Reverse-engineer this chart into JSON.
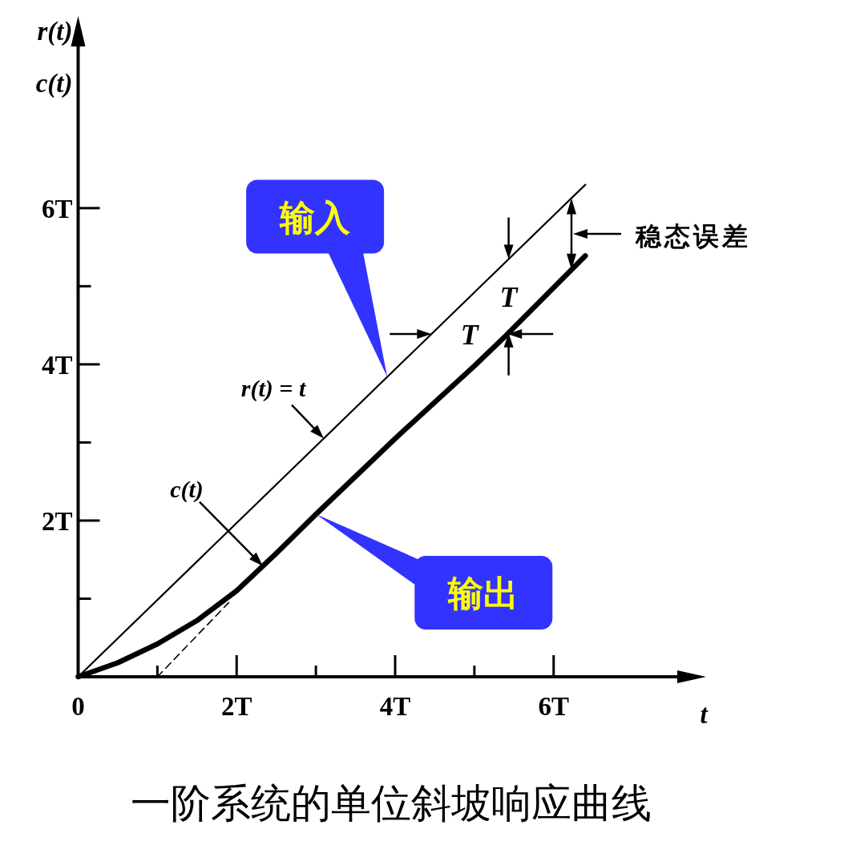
{
  "chart_data": {
    "type": "line",
    "title": "一阶系统的单位斜坡响应曲线",
    "xlabel": "t",
    "ylabel": "r(t)\nc(t)",
    "series": [
      {
        "color": "#000000",
        "x": [
          0,
          6.4
        ],
        "values": [
          0,
          6.3
        ]
      },
      {
        "color": "#000000",
        "x": [
          0,
          0.5,
          1,
          1.5,
          2,
          2.5,
          3,
          4,
          5,
          5.4,
          6.4
        ],
        "values": [
          0,
          0.18,
          0.42,
          0.72,
          1.1,
          1.58,
          2.08,
          3.05,
          3.98,
          4.37,
          5.39
        ]
      },
      {
        "color": "#000000",
        "line_style": "dashed",
        "x": [
          1,
          1.9
        ],
        "values": [
          0,
          0.95
        ]
      }
    ],
    "xlim": [
      0,
      7.57
    ],
    "ylim": [
      0,
      8.08
    ],
    "xticks": [
      0,
      {
        "value": 1,
        "label": null
      },
      {
        "value": 2,
        "label": "2T"
      },
      {
        "value": 3,
        "label": null
      },
      {
        "value": 4,
        "label": "4T"
      },
      {
        "value": 5,
        "label": null
      },
      {
        "value": 6,
        "label": "6T"
      }
    ],
    "yticks": [
      {
        "value": 1,
        "label": null
      },
      {
        "value": 2,
        "label": "2T"
      },
      {
        "value": 3,
        "label": null
      },
      {
        "value": 4,
        "label": "4T"
      },
      {
        "value": 5,
        "label": null
      },
      {
        "value": 6,
        "label": "6T"
      }
    ],
    "annotations": [
      {
        "text": "输入",
        "x": 3.9,
        "y": 3.84
      },
      "输出",
      {
        "text": "r(t) = t",
        "x": 3.1,
        "y": 3.05
      },
      "c(t)",
      "稳态误差",
      "T",
      "T"
    ]
  }
}
